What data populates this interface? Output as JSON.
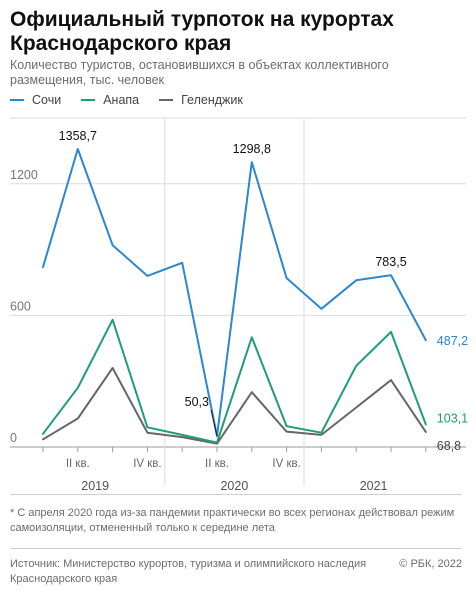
{
  "header": {
    "title": "Официальный турпоток на курортах Краснодарского края",
    "subtitle": "Количество туристов, остановившихся в объектах коллективного размещения, тыс. человек"
  },
  "footer": {
    "footnote": "* С апреля 2020 года из-за пандемии практически во всех регионах действовал режим самоизоляции, отмененный только к середине лета",
    "source": "Источник: Министерство курортов, туризма и олимпийского наследия Краснодарского края",
    "copyright": "© РБК, 2022"
  },
  "chart_data": {
    "type": "line",
    "x": [
      "2019 I",
      "2019 II",
      "2019 III",
      "2019 IV",
      "2020 I",
      "2020 II",
      "2020 III",
      "2020 IV",
      "2021 I",
      "2021 II",
      "2021 III",
      "2021 IV"
    ],
    "x_tick_labels": [
      "II кв.",
      "IV кв.",
      "II кв.",
      "IV кв."
    ],
    "x_tick_index": [
      1,
      3,
      5,
      7
    ],
    "year_labels": [
      "2019",
      "2020",
      "2021"
    ],
    "ylim": [
      0,
      1500
    ],
    "y_ticks": [
      0,
      600,
      1200
    ],
    "grid": true,
    "legend_position": "top-left",
    "series": [
      {
        "name": "Сочи",
        "color": "#2a87d0",
        "values": [
          820,
          1358.7,
          920,
          780,
          840,
          50.3,
          1298.8,
          770,
          630,
          760,
          783.5,
          487.2
        ]
      },
      {
        "name": "Анапа",
        "color": "#1e9e74",
        "values": [
          60,
          270,
          580,
          90,
          55,
          20,
          500,
          95,
          65,
          370,
          525,
          103.1
        ]
      },
      {
        "name": "Геленджик",
        "color": "#666666",
        "values": [
          35,
          130,
          360,
          65,
          45,
          15,
          250,
          70,
          55,
          180,
          305,
          68.8
        ]
      }
    ],
    "annotations": [
      {
        "series": 0,
        "index": 1,
        "text": "1358,7"
      },
      {
        "series": 0,
        "index": 5,
        "text": "50,3"
      },
      {
        "series": 0,
        "index": 6,
        "text": "1298,8"
      },
      {
        "series": 0,
        "index": 10,
        "text": "783,5"
      },
      {
        "series": 0,
        "index": 11,
        "text": "487,2"
      },
      {
        "series": 1,
        "index": 11,
        "text": "103,1"
      },
      {
        "series": 2,
        "index": 11,
        "text": "68,8"
      }
    ]
  }
}
